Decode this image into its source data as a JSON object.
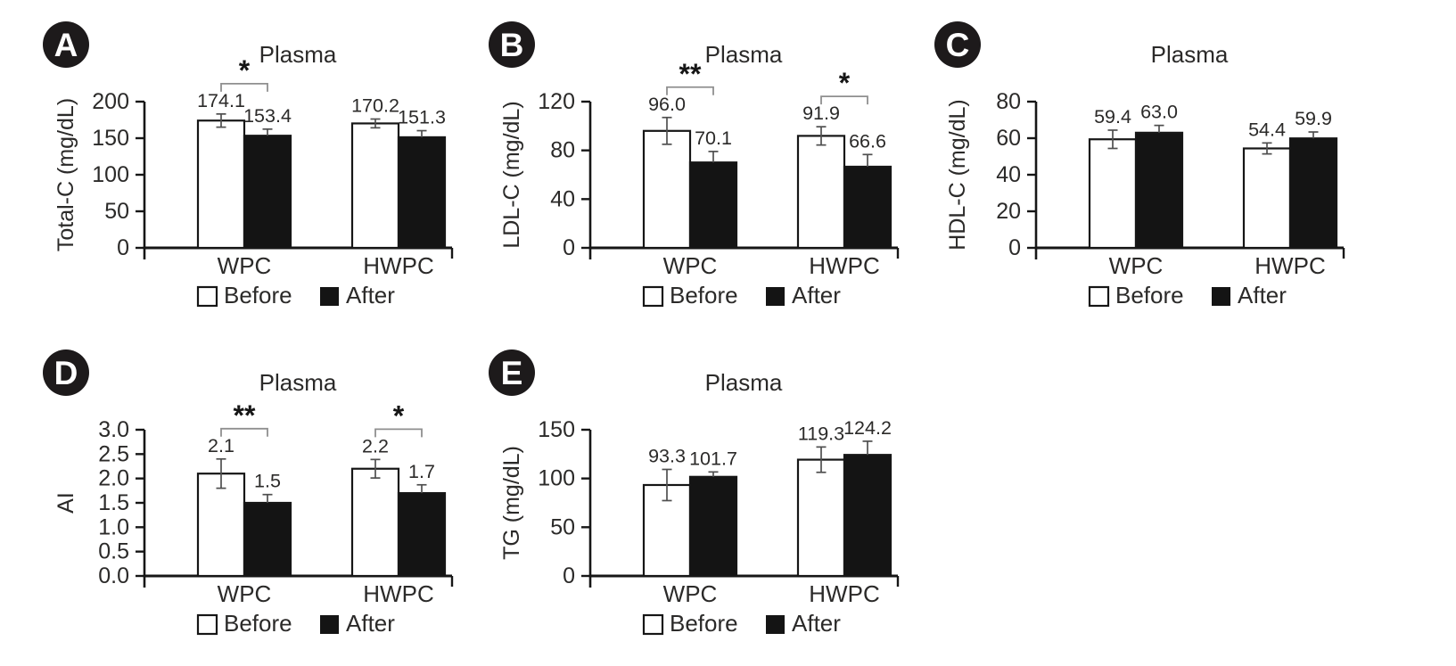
{
  "colors": {
    "axis": "#161616",
    "text": "#2b2a29",
    "bar_before_fill": "#ffffff",
    "bar_after_fill": "#141414",
    "bar_stroke": "#161616",
    "error_bar": "#4f4f4f",
    "bracket": "#8f8f8f",
    "marker": "#161616",
    "badge_bg": "#1d1a1b",
    "badge_fg": "#ffffff",
    "background": "#ffffff"
  },
  "legend": {
    "items": [
      {
        "name": "before",
        "label": "Before",
        "fill": "#ffffff"
      },
      {
        "name": "after",
        "label": "After",
        "fill": "#141414"
      }
    ]
  },
  "chart_data": [
    {
      "type": "bar",
      "panel_label": "A",
      "title": "Plasma",
      "ylabel": "Total-C (mg/dL)",
      "xlabel": "",
      "ylim": [
        0,
        200
      ],
      "ytick_step": 50,
      "ytick_decimals": 0,
      "grid": false,
      "legend_position": "bottom",
      "categories": [
        "WPC",
        "HWPC"
      ],
      "series": [
        {
          "name": "Before",
          "values": [
            174.1,
            170.2
          ],
          "errors": [
            9,
            6
          ],
          "value_labels": [
            "174.1",
            "170.2"
          ]
        },
        {
          "name": "After",
          "values": [
            153.4,
            151.3
          ],
          "errors": [
            9,
            9
          ],
          "value_labels": [
            "153.4",
            "151.3"
          ]
        }
      ],
      "significance": [
        {
          "category": "WPC",
          "marker": "*"
        }
      ]
    },
    {
      "type": "bar",
      "panel_label": "B",
      "title": "Plasma",
      "ylabel": "LDL-C (mg/dL)",
      "xlabel": "",
      "ylim": [
        0,
        120
      ],
      "ytick_step": 40,
      "ytick_decimals": 0,
      "grid": false,
      "legend_position": "bottom",
      "categories": [
        "WPC",
        "HWPC"
      ],
      "series": [
        {
          "name": "Before",
          "values": [
            96.0,
            91.9
          ],
          "errors": [
            11,
            7.5
          ],
          "value_labels": [
            "96.0",
            "91.9"
          ]
        },
        {
          "name": "After",
          "values": [
            70.1,
            66.6
          ],
          "errors": [
            9,
            10
          ],
          "value_labels": [
            "70.1",
            "66.6"
          ]
        }
      ],
      "significance": [
        {
          "category": "WPC",
          "marker": "**"
        },
        {
          "category": "HWPC",
          "marker": "*"
        }
      ]
    },
    {
      "type": "bar",
      "panel_label": "C",
      "title": "Plasma",
      "ylabel": "HDL-C (mg/dL)",
      "xlabel": "",
      "ylim": [
        0,
        80
      ],
      "ytick_step": 20,
      "ytick_decimals": 0,
      "grid": false,
      "legend_position": "bottom",
      "categories": [
        "WPC",
        "HWPC"
      ],
      "series": [
        {
          "name": "Before",
          "values": [
            59.4,
            54.4
          ],
          "errors": [
            5,
            3
          ],
          "value_labels": [
            "59.4",
            "54.4"
          ]
        },
        {
          "name": "After",
          "values": [
            63.0,
            59.9
          ],
          "errors": [
            4,
            3.5
          ],
          "value_labels": [
            "63.0",
            "59.9"
          ]
        }
      ],
      "significance": []
    },
    {
      "type": "bar",
      "panel_label": "D",
      "title": "Plasma",
      "ylabel": "AI",
      "xlabel": "",
      "ylim": [
        0,
        3.0
      ],
      "ytick_step": 0.5,
      "ytick_decimals": 1,
      "grid": false,
      "legend_position": "bottom",
      "categories": [
        "WPC",
        "HWPC"
      ],
      "series": [
        {
          "name": "Before",
          "values": [
            2.1,
            2.2
          ],
          "errors": [
            0.3,
            0.19
          ],
          "value_labels": [
            "2.1",
            "2.2"
          ]
        },
        {
          "name": "After",
          "values": [
            1.5,
            1.7
          ],
          "errors": [
            0.17,
            0.17
          ],
          "value_labels": [
            "1.5",
            "1.7"
          ]
        }
      ],
      "significance": [
        {
          "category": "WPC",
          "marker": "**"
        },
        {
          "category": "HWPC",
          "marker": "*"
        }
      ]
    },
    {
      "type": "bar",
      "panel_label": "E",
      "title": "Plasma",
      "ylabel": "TG (mg/dL)",
      "xlabel": "",
      "ylim": [
        0,
        150
      ],
      "ytick_step": 50,
      "ytick_decimals": 0,
      "grid": false,
      "legend_position": "bottom",
      "categories": [
        "WPC",
        "HWPC"
      ],
      "series": [
        {
          "name": "Before",
          "values": [
            93.3,
            119.3
          ],
          "errors": [
            16,
            13
          ],
          "value_labels": [
            "93.3",
            "119.3"
          ]
        },
        {
          "name": "After",
          "values": [
            101.7,
            124.2
          ],
          "errors": [
            5,
            14
          ],
          "value_labels": [
            "101.7",
            "124.2"
          ]
        }
      ],
      "significance": []
    }
  ]
}
